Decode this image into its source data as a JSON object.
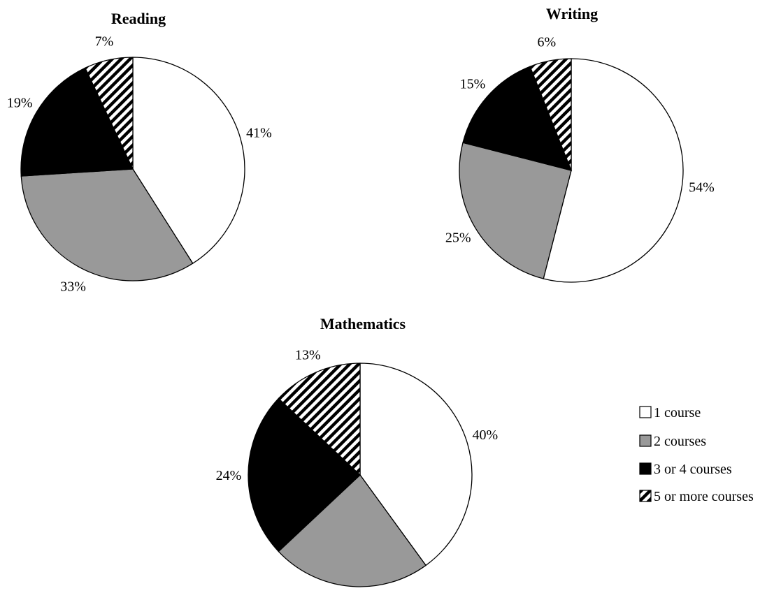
{
  "chart_data": [
    {
      "type": "pie",
      "title": "Reading",
      "slices": [
        {
          "category": "1 course",
          "value": 41,
          "label": "41%"
        },
        {
          "category": "2 courses",
          "value": 33,
          "label": "33%"
        },
        {
          "category": "3 or 4 courses",
          "value": 19,
          "label": "19%"
        },
        {
          "category": "5 or more courses",
          "value": 7,
          "label": "7%"
        }
      ]
    },
    {
      "type": "pie",
      "title": "Writing",
      "slices": [
        {
          "category": "1 course",
          "value": 54,
          "label": "54%"
        },
        {
          "category": "2 courses",
          "value": 25,
          "label": "25%"
        },
        {
          "category": "3 or 4 courses",
          "value": 15,
          "label": "15%"
        },
        {
          "category": "5 or more courses",
          "value": 6,
          "label": "6%"
        }
      ]
    },
    {
      "type": "pie",
      "title": "Mathematics",
      "slices": [
        {
          "category": "1 course",
          "value": 40,
          "label": "40%"
        },
        {
          "category": "2 courses",
          "value": 23,
          "label": "23%"
        },
        {
          "category": "3 or 4 courses",
          "value": 24,
          "label": "24%"
        },
        {
          "category": "5 or more courses",
          "value": 13,
          "label": "13%"
        }
      ]
    }
  ],
  "legend": {
    "placement": "right",
    "items": [
      {
        "label": "1 course",
        "fill": "#ffffff"
      },
      {
        "label": "2 courses",
        "fill": "#999999"
      },
      {
        "label": "3 or 4 courses",
        "fill": "#000000"
      },
      {
        "label": "5 or more courses",
        "fill": "hatch"
      }
    ]
  }
}
